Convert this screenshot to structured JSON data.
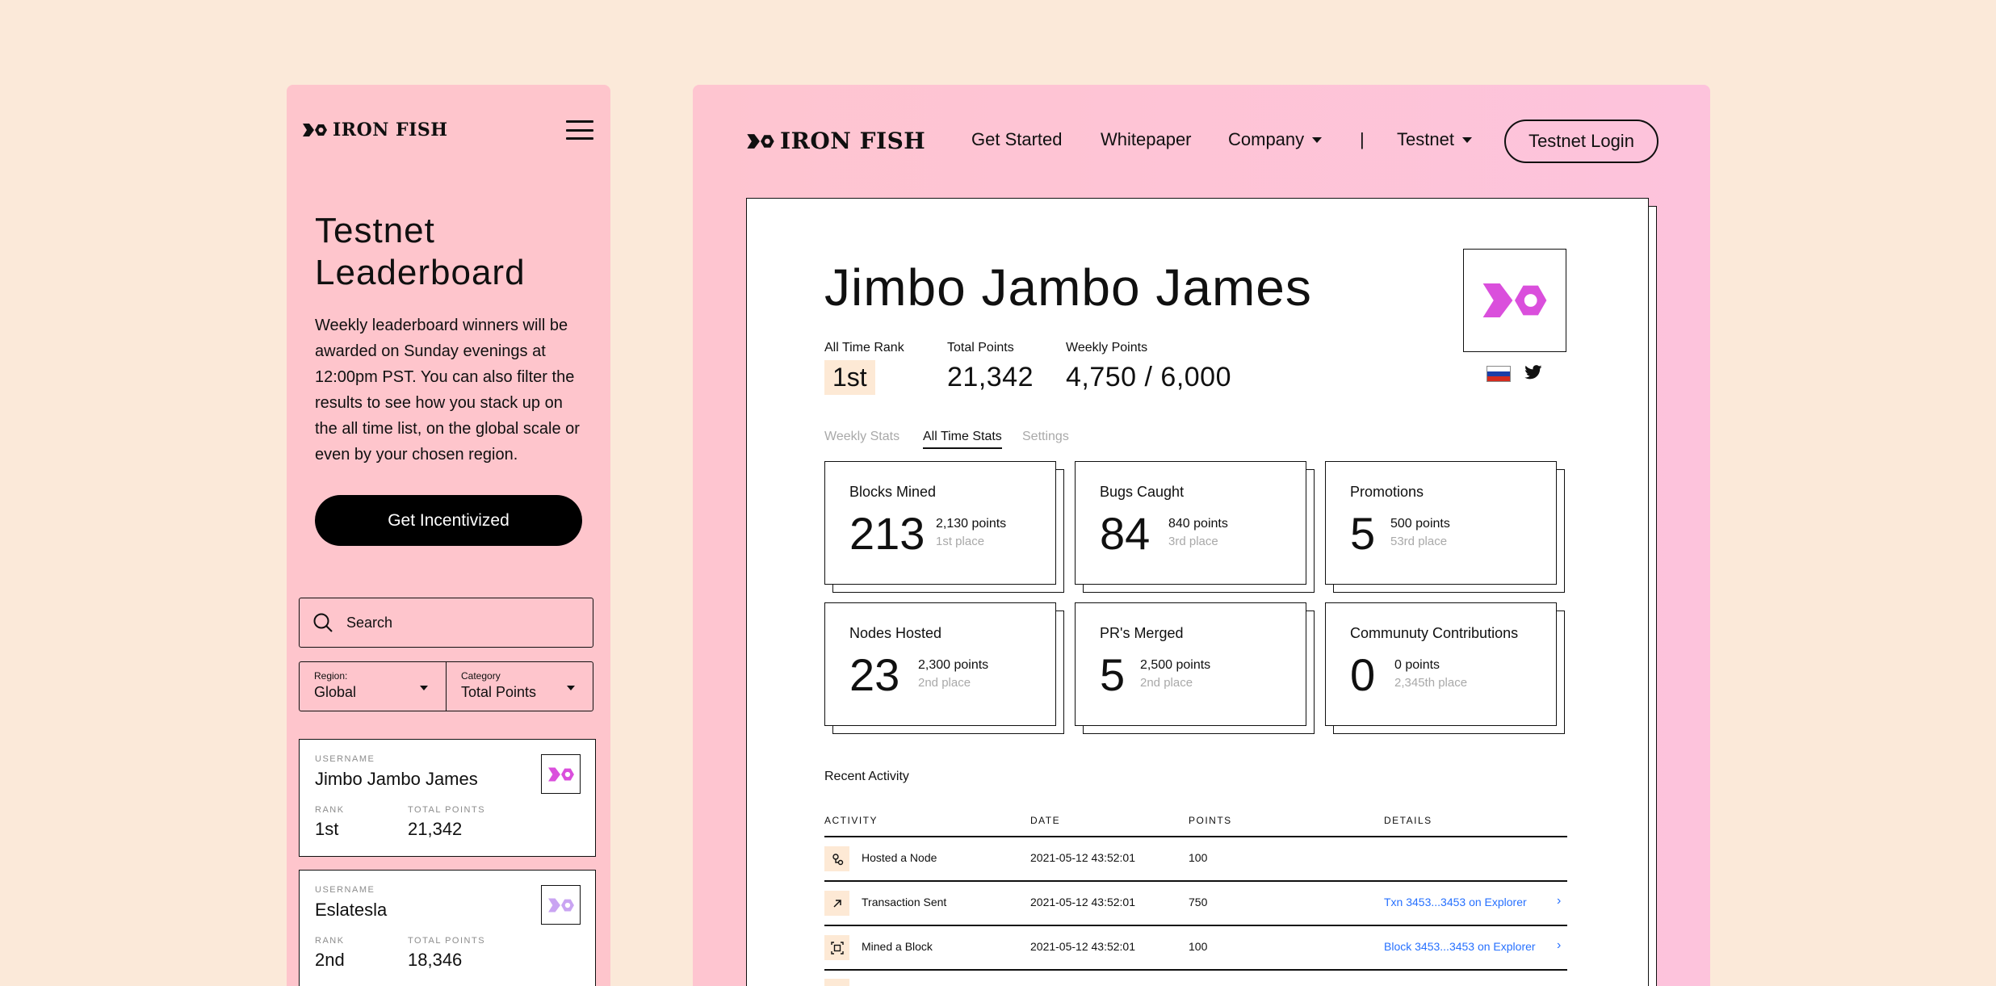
{
  "brand": {
    "name": "IRON FISH",
    "accent": "#da4fdc"
  },
  "mobile": {
    "title_line1": "Testnet",
    "title_line2": "Leaderboard",
    "description": "Weekly leaderboard winners will be awarded on Sunday evenings at 12:00pm PST. You can also filter the results to see how you stack up on the all time list, on the global scale or even by your chosen region.",
    "cta": "Get Incentivized",
    "search_placeholder": "Search",
    "filters": [
      {
        "label": "Region:",
        "value": "Global"
      },
      {
        "label": "Category",
        "value": "Total Points"
      }
    ],
    "cards": [
      {
        "username_label": "USERNAME",
        "username": "Jimbo Jambo James",
        "rank_label": "RANK",
        "rank": "1st",
        "points_label": "TOTAL POINTS",
        "points": "21,342"
      },
      {
        "username_label": "USERNAME",
        "username": "Eslatesla",
        "rank_label": "RANK",
        "rank": "2nd",
        "points_label": "TOTAL POINTS",
        "points": "18,346"
      }
    ]
  },
  "desktop": {
    "nav": [
      "Get Started",
      "Whitepaper",
      "Company",
      "|",
      "Testnet"
    ],
    "login": "Testnet Login",
    "profile": {
      "name": "Jimbo Jambo James",
      "rank_label": "All Time Rank",
      "rank": "1st",
      "total_label": "Total Points",
      "total": "21,342",
      "weekly_label": "Weekly Points",
      "weekly": "4,750 / 6,000",
      "flag_icon": "russia-flag-icon",
      "social_icon": "twitter-icon"
    },
    "tabs": [
      "Weekly Stats",
      "All Time Stats",
      "Settings"
    ],
    "active_tab": "All Time Stats",
    "cards": [
      {
        "title": "Blocks Mined",
        "value": "213",
        "points": "2,130 points",
        "place": "1st place"
      },
      {
        "title": "Bugs Caught",
        "value": "84",
        "points": "840 points",
        "place": "3rd place"
      },
      {
        "title": "Promotions",
        "value": "5",
        "points": "500 points",
        "place": "53rd place"
      },
      {
        "title": "Nodes Hosted",
        "value": "23",
        "points": "2,300 points",
        "place": "2nd place"
      },
      {
        "title": "PR's Merged",
        "value": "5",
        "points": "2,500 points",
        "place": "2nd place"
      },
      {
        "title": "Communuty Contributions",
        "value": "0",
        "points": "0 points",
        "place": "2,345th place"
      }
    ],
    "recent": {
      "title": "Recent Activity",
      "headers": [
        "ACTIVITY",
        "DATE",
        "POINTS",
        "DETAILS"
      ],
      "rows": [
        {
          "icon": "node-icon",
          "activity": "Hosted a Node",
          "date": "2021-05-12 43:52:01",
          "points": "100",
          "details": ""
        },
        {
          "icon": "arrow-up-right-icon",
          "activity": "Transaction Sent",
          "date": "2021-05-12 43:52:01",
          "points": "750",
          "details": "Txn 3453...3453 on Explorer"
        },
        {
          "icon": "block-icon",
          "activity": "Mined a Block",
          "date": "2021-05-12 43:52:01",
          "points": "100",
          "details": "Block 3453...3453 on Explorer"
        }
      ]
    }
  }
}
